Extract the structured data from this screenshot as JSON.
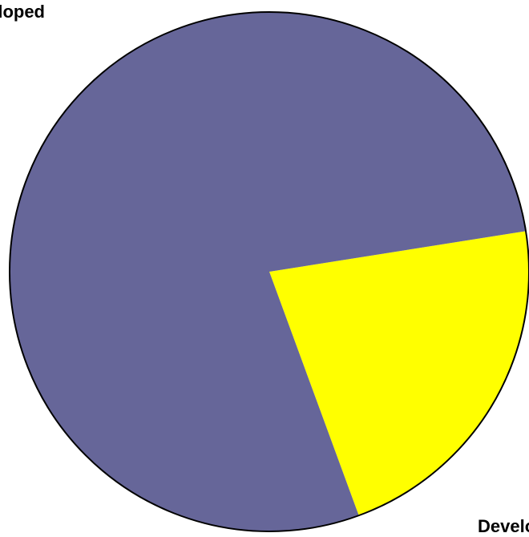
{
  "chart_data": {
    "type": "pie",
    "slices": [
      {
        "label": "Developed",
        "value": 21.9,
        "color": "#ffff00"
      },
      {
        "label": "Undeveloped",
        "value": 78.1,
        "color": "#666699"
      }
    ],
    "start_angle_deg": -9,
    "direction": "clockwise",
    "outline_color": "#000000",
    "legend": "none",
    "grid": false
  }
}
